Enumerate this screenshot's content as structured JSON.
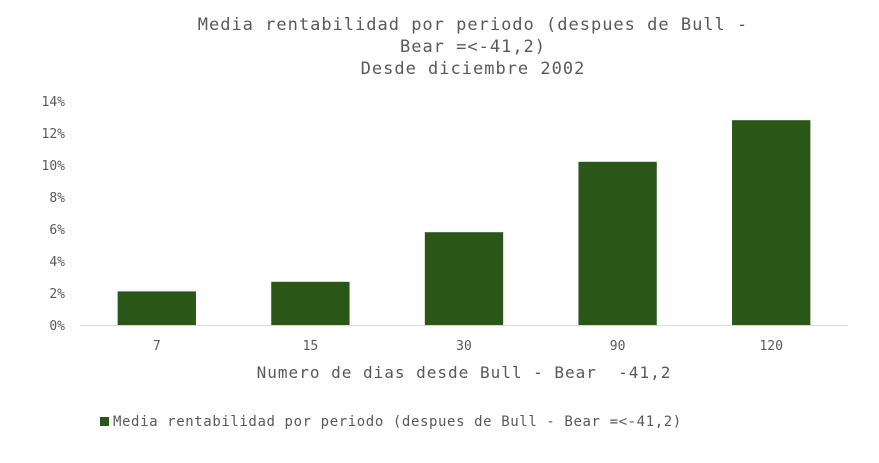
{
  "chart_data": {
    "type": "bar",
    "title": [
      "Media rentabilidad por periodo (despues de Bull -",
      "Bear =<-41,2)",
      "Desde diciembre 2002"
    ],
    "categories": [
      "7",
      "15",
      "30",
      "90",
      "120"
    ],
    "series": [
      {
        "name": "Media rentabilidad por periodo (despues de Bull - Bear =<-41,2)",
        "values": [
          2.1,
          2.7,
          5.8,
          10.2,
          12.8
        ]
      }
    ],
    "xlabel": "Numero de dias desde Bull - Bear  -41,2",
    "ylabel": "",
    "ylim": [
      0,
      14
    ],
    "yticks": [
      "0%",
      "2%",
      "4%",
      "6%",
      "8%",
      "10%",
      "12%",
      "14%"
    ],
    "grid": false,
    "legend": "bottom",
    "colors": {
      "bar": "#2a5618",
      "text": "#595959",
      "axis": "#d9d9d9"
    }
  }
}
